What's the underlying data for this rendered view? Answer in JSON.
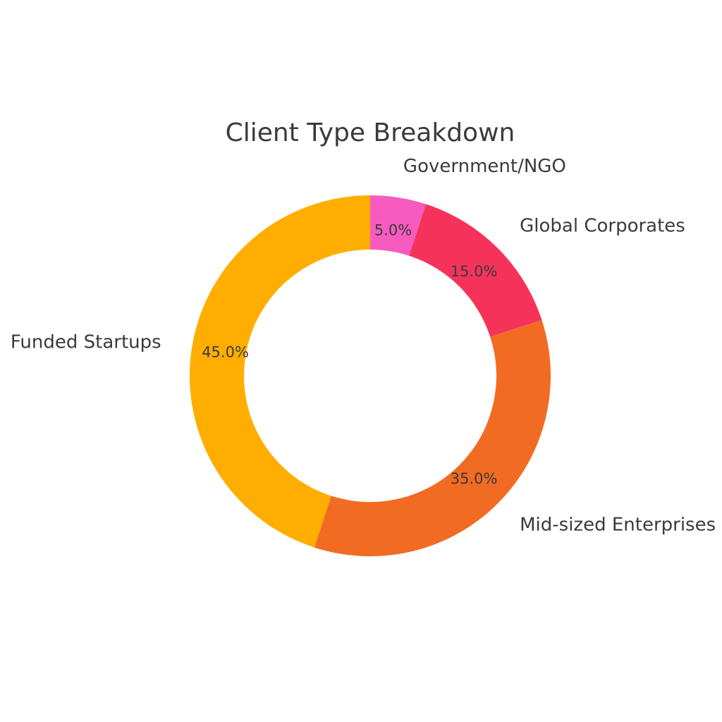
{
  "chart_data": {
    "type": "pie",
    "variant": "donut",
    "title": "Client Type Breakdown",
    "slices": [
      {
        "label": "Government/NGO",
        "value": 5.0,
        "pct_label": "5.0%",
        "color": "#F75BC0"
      },
      {
        "label": "Global Corporates",
        "value": 15.0,
        "pct_label": "15.0%",
        "color": "#F5335A"
      },
      {
        "label": "Mid-sized Enterprises",
        "value": 35.0,
        "pct_label": "35.0%",
        "color": "#F26B22"
      },
      {
        "label": "Funded Startups",
        "value": 45.0,
        "pct_label": "45.0%",
        "color": "#FFAE00"
      }
    ],
    "start_angle": "top",
    "direction": "clockwise",
    "legend": "none"
  }
}
